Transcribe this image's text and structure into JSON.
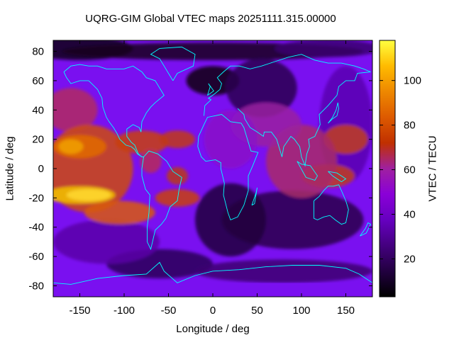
{
  "title": "UQRG-GIM Global VTEC maps 20251111.315.00000",
  "axes": {
    "xlabel": "Longitude / deg",
    "ylabel": "Latitude / deg",
    "colorbar_label": "VTEC / TECU",
    "x_ticks": [
      "-150",
      "-100",
      "-50",
      "0",
      "50",
      "100",
      "150"
    ],
    "x_tick_values": [
      -150,
      -100,
      -50,
      0,
      50,
      100,
      150
    ],
    "y_ticks": [
      "80",
      "60",
      "40",
      "20",
      "0",
      "-20",
      "-40",
      "-60",
      "-80"
    ],
    "y_tick_values": [
      80,
      60,
      40,
      20,
      0,
      -20,
      -40,
      -60,
      -80
    ],
    "colorbar_ticks": [
      "100",
      "80",
      "60",
      "40",
      "20"
    ],
    "colorbar_tick_values": [
      100,
      80,
      60,
      40,
      20
    ],
    "xlim": [
      -180,
      180
    ],
    "ylim": [
      -87.5,
      87.5
    ],
    "clim": [
      3,
      118
    ]
  },
  "colors": {
    "coastline": "#00ffff",
    "colormap": "gnuplot-rgbformulae-7,5,15"
  }
}
